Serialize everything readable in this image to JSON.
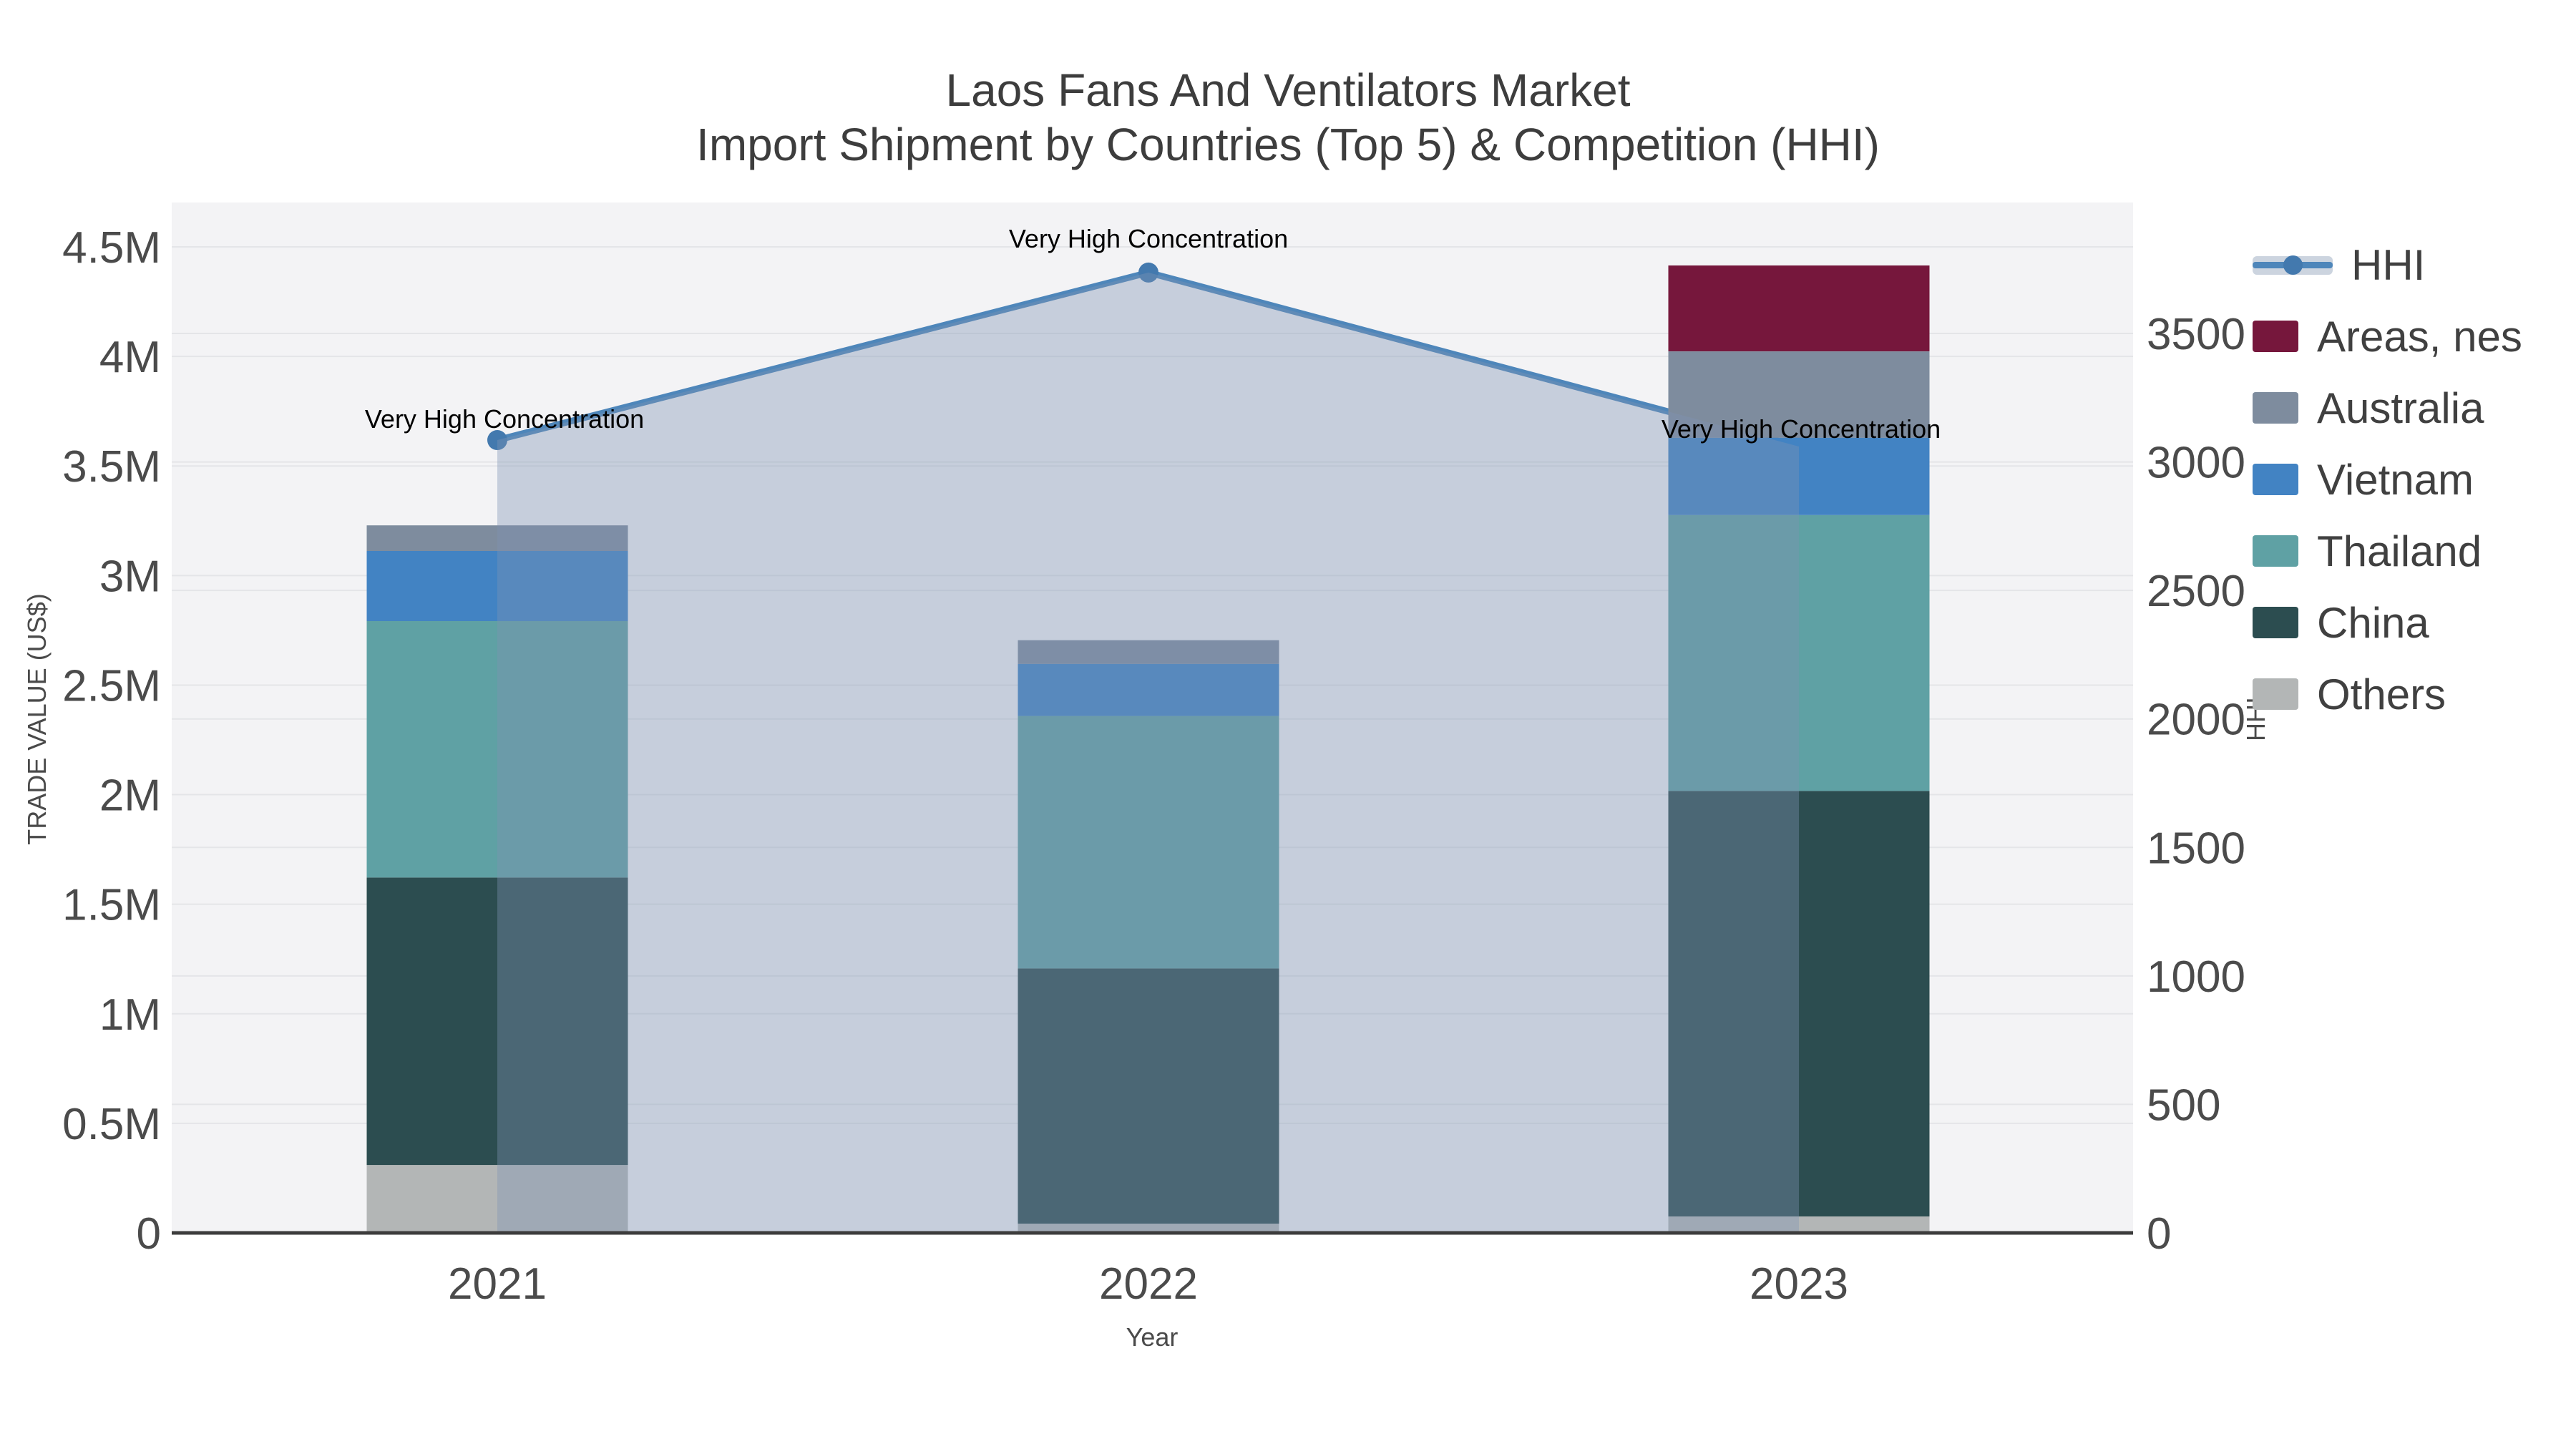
{
  "title": {
    "line1": "Laos Fans And Ventilators Market",
    "line2": "Import Shipment by Countries (Top 5) & Competition (HHI)"
  },
  "axes": {
    "left_title": "TRADE VALUE (US$)",
    "bottom_title": "Year",
    "right_title": "HHI",
    "left_ticks": [
      {
        "label": "0",
        "value": 0
      },
      {
        "label": "0.5M",
        "value": 500000
      },
      {
        "label": "1M",
        "value": 1000000
      },
      {
        "label": "1.5M",
        "value": 1500000
      },
      {
        "label": "2M",
        "value": 2000000
      },
      {
        "label": "2.5M",
        "value": 2500000
      },
      {
        "label": "3M",
        "value": 3000000
      },
      {
        "label": "3.5M",
        "value": 3500000
      },
      {
        "label": "4M",
        "value": 4000000
      },
      {
        "label": "4.5M",
        "value": 4500000
      }
    ],
    "right_ticks": [
      {
        "label": "0",
        "value": 0
      },
      {
        "label": "500",
        "value": 500
      },
      {
        "label": "1000",
        "value": 1000
      },
      {
        "label": "1500",
        "value": 1500
      },
      {
        "label": "2000",
        "value": 2000
      },
      {
        "label": "2500",
        "value": 2500
      },
      {
        "label": "3000",
        "value": 3000
      },
      {
        "label": "3500",
        "value": 3500
      }
    ]
  },
  "chart_data": {
    "type": "bar",
    "subtype": "stacked-bars-with-line-overlay",
    "title": "Laos Fans And Ventilators Market Import Shipment by Countries (Top 5) & Competition (HHI)",
    "xlabel": "Year",
    "ylabel": "TRADE VALUE (US$)",
    "y2label": "HHI",
    "ylim": [
      0,
      4500000
    ],
    "y2lim": [
      0,
      3500
    ],
    "grid": true,
    "legend_position": "right",
    "categories": [
      "2021",
      "2022",
      "2023"
    ],
    "stack_series": [
      {
        "name": "Others",
        "color": "#b3b6b6",
        "values": [
          310000,
          42000,
          75000
        ]
      },
      {
        "name": "China",
        "color": "#2c4d50",
        "values": [
          1312000,
          1165000,
          1942000
        ]
      },
      {
        "name": "Thailand",
        "color": "#5fa1a4",
        "values": [
          1170000,
          1152000,
          1259000
        ]
      },
      {
        "name": "Vietnam",
        "color": "#4283c3",
        "values": [
          320000,
          238000,
          353000
        ]
      },
      {
        "name": "Australia",
        "color": "#7e8c9e",
        "values": [
          117000,
          108000,
          394000
        ]
      },
      {
        "name": "Areas, nes",
        "color": "#76173c",
        "values": [
          0,
          0,
          392000
        ]
      }
    ],
    "totals": [
      3229000,
      2705000,
      4415000
    ],
    "line_series": {
      "name": "HHI",
      "color": "#4e86ba",
      "marker_color": "#4379ae",
      "area_color": "#7d93b2",
      "values": [
        3085,
        3737,
        3060
      ]
    },
    "annotations": [
      "Very High Concentration",
      "Very High Concentration",
      "Very High Concentration"
    ]
  },
  "legend": {
    "items": [
      {
        "label": "HHI",
        "type": "line",
        "color": "#4e86ba"
      },
      {
        "label": "Areas, nes",
        "type": "box",
        "color": "#76173c"
      },
      {
        "label": "Australia",
        "type": "box",
        "color": "#7e8c9e"
      },
      {
        "label": "Vietnam",
        "type": "box",
        "color": "#4283c3"
      },
      {
        "label": "Thailand",
        "type": "box",
        "color": "#5fa1a4"
      },
      {
        "label": "China",
        "type": "box",
        "color": "#2c4d50"
      },
      {
        "label": "Others",
        "type": "box",
        "color": "#b3b6b6"
      }
    ]
  },
  "colors": {
    "plot_background": "#f3f3f5",
    "gridline": "#e4e5e8",
    "axis_line": "#3c3c3c",
    "tick_text": "#4b4b4b",
    "annotation_text": "#000000"
  }
}
